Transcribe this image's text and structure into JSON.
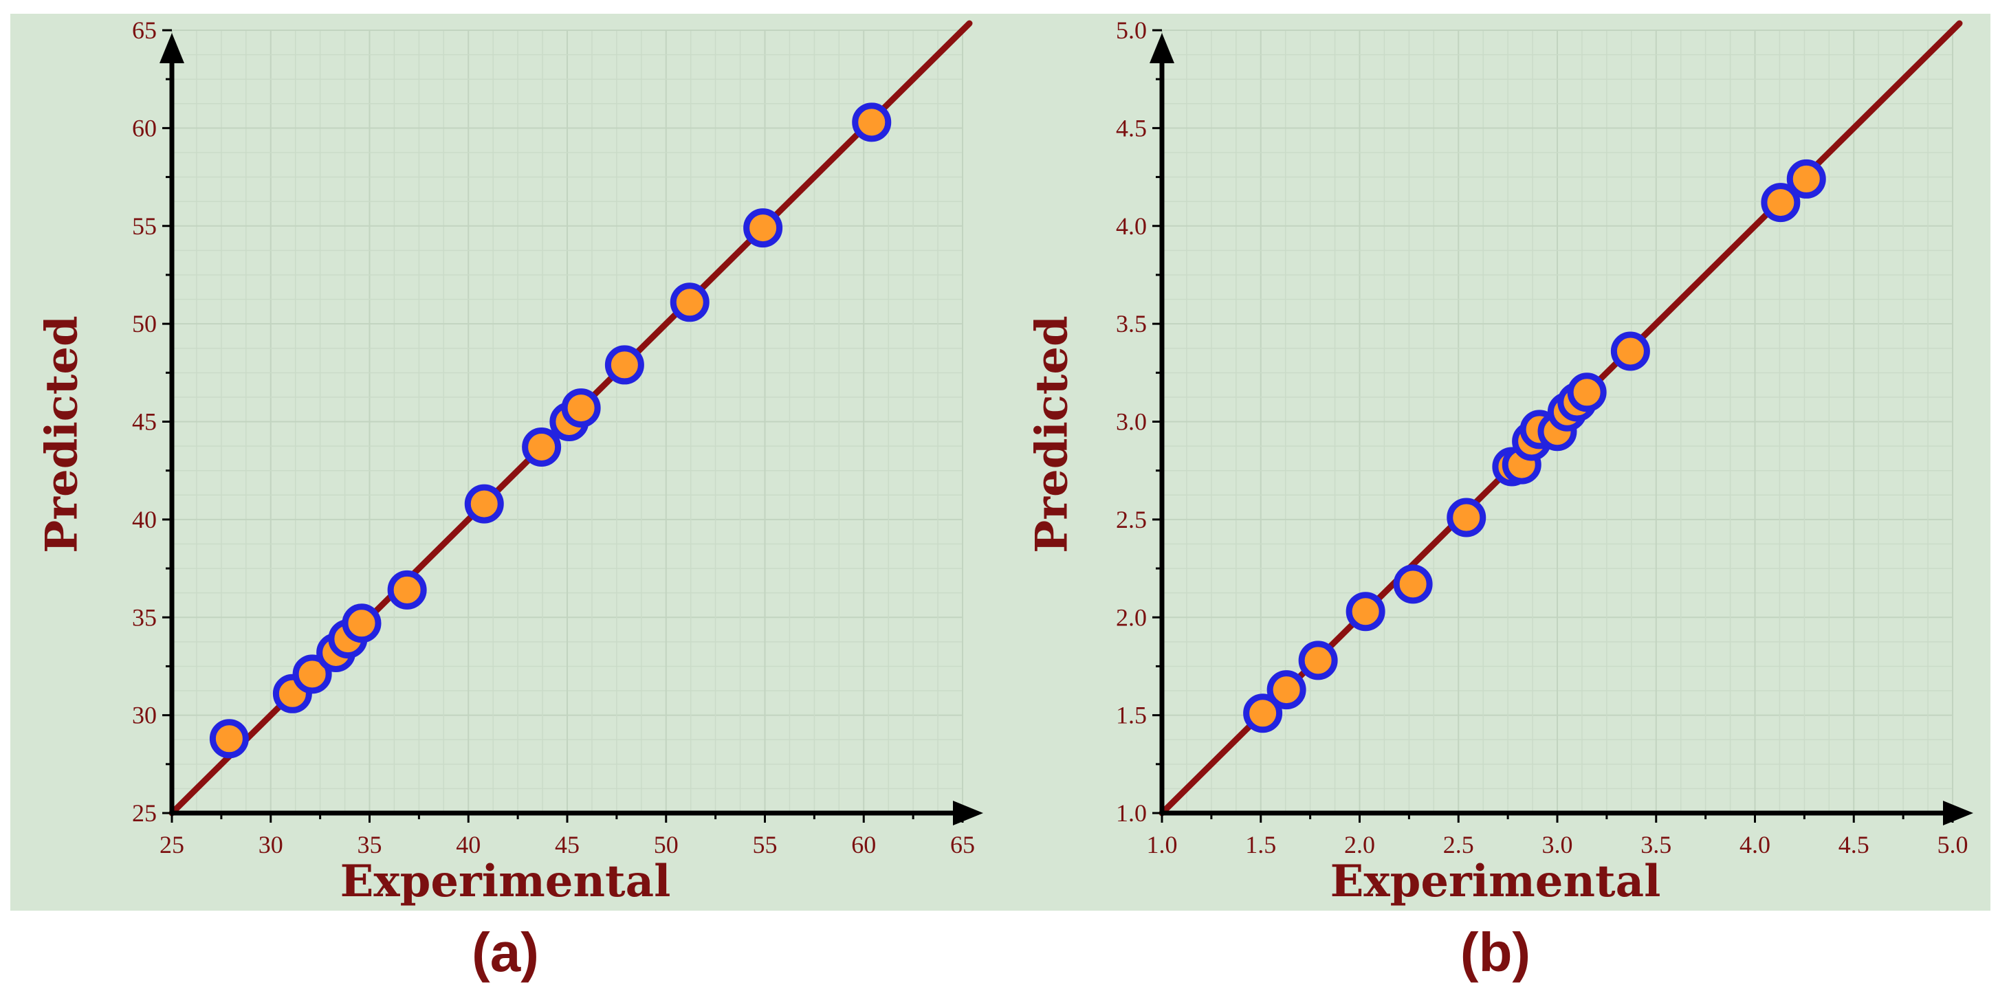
{
  "chart_data": [
    {
      "type": "scatter",
      "caption": "(a)",
      "xlabel": "Experimental",
      "ylabel": "Predicted",
      "xlim": [
        25,
        65
      ],
      "ylim": [
        25,
        65
      ],
      "xticks": [
        "25",
        "30",
        "35",
        "40",
        "45",
        "50",
        "55",
        "60",
        "65"
      ],
      "yticks": [
        "25",
        "30",
        "35",
        "40",
        "45",
        "50",
        "55",
        "60",
        "65"
      ],
      "grid": true,
      "fit_line": {
        "from": [
          25,
          25
        ],
        "to": [
          65,
          65
        ]
      },
      "points": [
        [
          27.9,
          28.8
        ],
        [
          31.1,
          31.1
        ],
        [
          32.1,
          32.1
        ],
        [
          33.3,
          33.2
        ],
        [
          33.9,
          33.9
        ],
        [
          34.6,
          34.7
        ],
        [
          36.9,
          36.4
        ],
        [
          40.8,
          40.8
        ],
        [
          43.7,
          43.7
        ],
        [
          45.1,
          45.0
        ],
        [
          45.7,
          45.7
        ],
        [
          47.9,
          47.9
        ],
        [
          51.2,
          51.1
        ],
        [
          54.9,
          54.9
        ],
        [
          60.4,
          60.3
        ]
      ],
      "colors": {
        "line": "#8b1010",
        "marker_fill": "#ff9a2a",
        "marker_edge": "#2323e0",
        "background": "#d6e6d4"
      }
    },
    {
      "type": "scatter",
      "caption": "(b)",
      "xlabel": "Experimental",
      "ylabel": "Predicted",
      "xlim": [
        1.0,
        5.0
      ],
      "ylim": [
        1.0,
        5.0
      ],
      "xticks": [
        "1.0",
        "1.5",
        "2.0",
        "2.5",
        "3.0",
        "3.5",
        "4.0",
        "4.5",
        "5.0"
      ],
      "yticks": [
        "1.0",
        "1.5",
        "2.0",
        "2.5",
        "3.0",
        "3.5",
        "4.0",
        "4.5",
        "5.0"
      ],
      "grid": true,
      "fit_line": {
        "from": [
          1.0,
          1.0
        ],
        "to": [
          5.0,
          5.0
        ]
      },
      "points": [
        [
          1.51,
          1.51
        ],
        [
          1.63,
          1.63
        ],
        [
          1.79,
          1.78
        ],
        [
          2.03,
          2.03
        ],
        [
          2.27,
          2.17
        ],
        [
          2.54,
          2.51
        ],
        [
          2.77,
          2.77
        ],
        [
          2.82,
          2.78
        ],
        [
          2.87,
          2.9
        ],
        [
          2.91,
          2.96
        ],
        [
          3.0,
          2.95
        ],
        [
          3.05,
          3.05
        ],
        [
          3.1,
          3.1
        ],
        [
          3.15,
          3.15
        ],
        [
          3.37,
          3.36
        ],
        [
          4.13,
          4.12
        ],
        [
          4.26,
          4.24
        ]
      ],
      "colors": {
        "line": "#8b1010",
        "marker_fill": "#ff9a2a",
        "marker_edge": "#2323e0",
        "background": "#d6e6d4"
      }
    }
  ]
}
